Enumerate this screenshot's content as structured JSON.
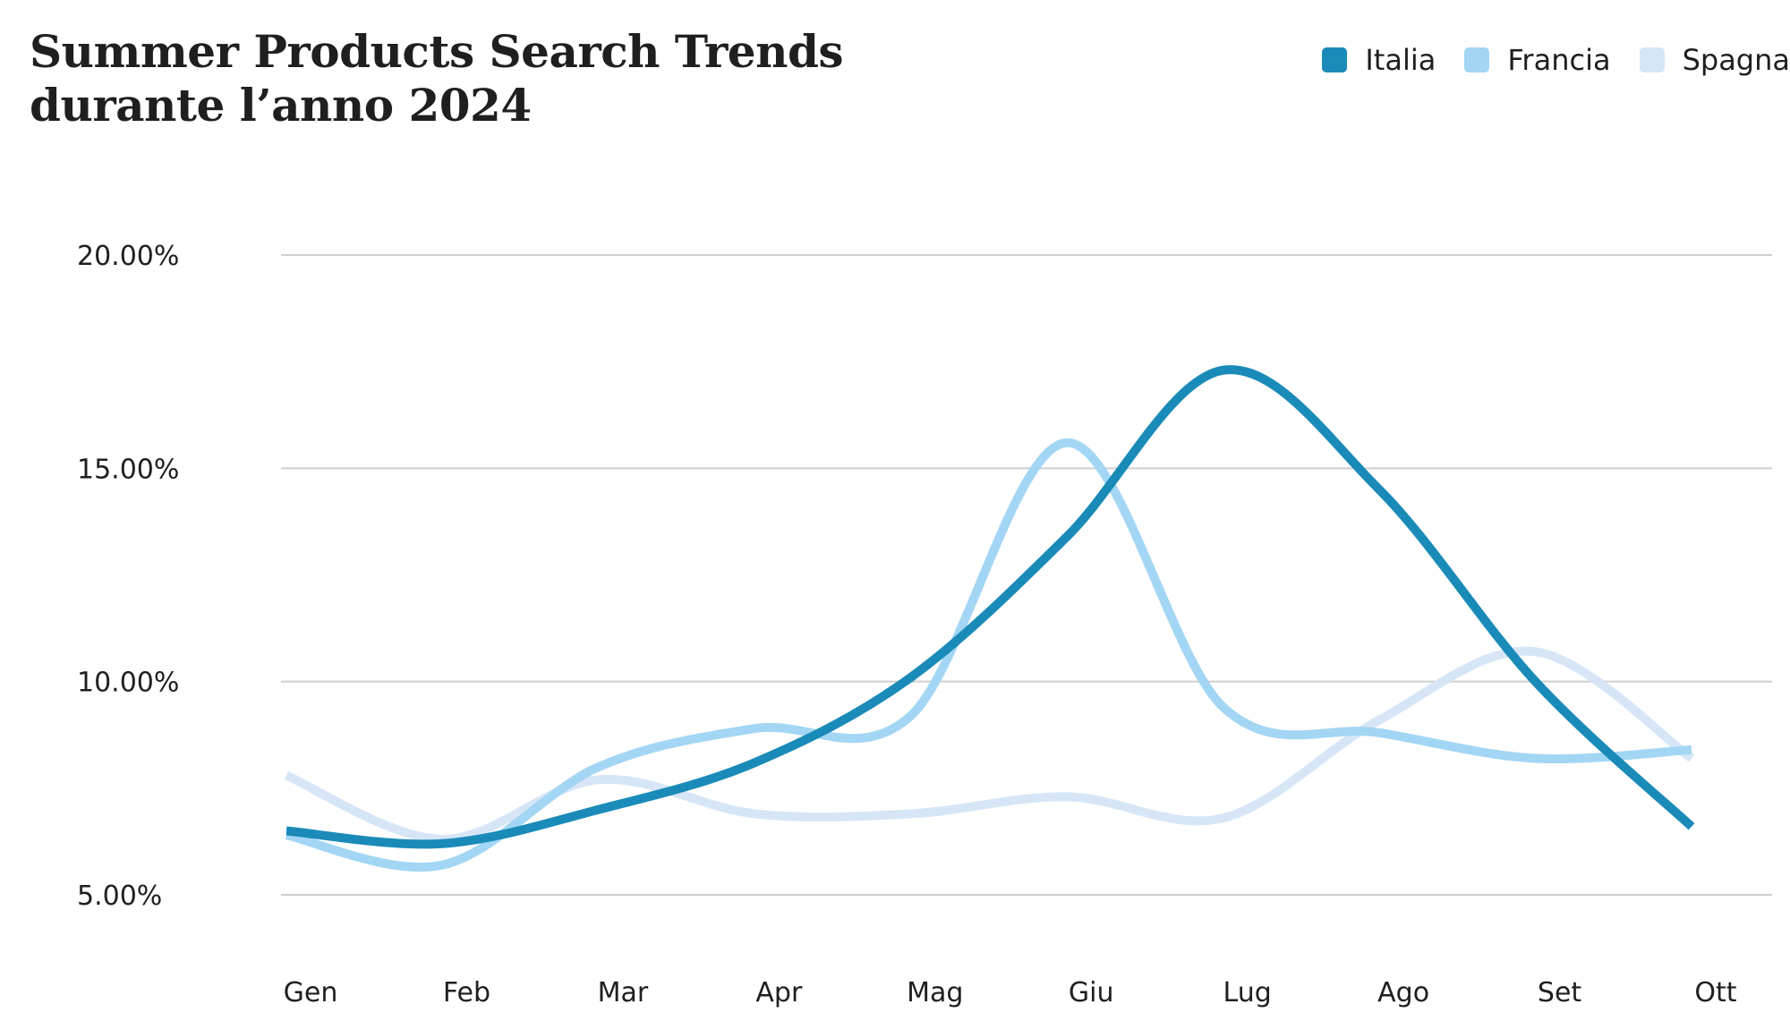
{
  "chart_data": {
    "type": "line",
    "title": "Summer Products Search Trends",
    "subtitle": "durante l’anno 2024",
    "categories": [
      "Gen",
      "Feb",
      "Mar",
      "Apr",
      "Mag",
      "Giu",
      "Lug",
      "Ago",
      "Set",
      "Ott"
    ],
    "series": [
      {
        "name": "Italia",
        "color": "#1a8bb8",
        "values": [
          6.5,
          6.2,
          7.0,
          8.1,
          10.1,
          13.4,
          17.3,
          14.5,
          10.0,
          6.6
        ]
      },
      {
        "name": "Francia",
        "color": "#a3d6f4",
        "values": [
          6.4,
          5.7,
          8.0,
          8.9,
          9.2,
          15.6,
          9.4,
          8.8,
          8.2,
          8.4
        ]
      },
      {
        "name": "Spagna",
        "color": "#d7e6f7",
        "values": [
          7.8,
          6.3,
          7.7,
          6.9,
          6.9,
          7.3,
          6.8,
          9.1,
          10.7,
          8.2
        ]
      }
    ],
    "y_ticks": [
      "5.00%",
      "10.00%",
      "15.00%",
      "20.00%"
    ],
    "ylim": [
      5,
      20
    ],
    "grid": true,
    "legend": "top-right"
  }
}
